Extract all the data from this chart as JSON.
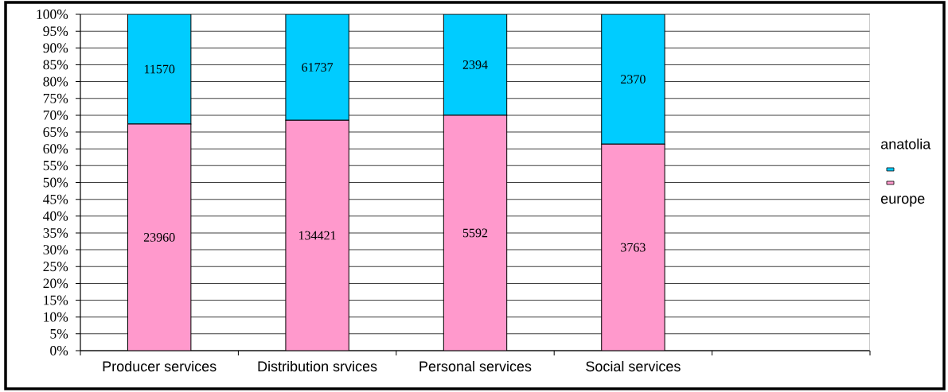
{
  "chart_data": {
    "type": "bar",
    "stacked": true,
    "categories": [
      "Producer services",
      "Distribution srvices",
      "Personal services",
      "Social services",
      null
    ],
    "series": [
      {
        "name": "europe",
        "color": "#ff99cc",
        "values": [
          67.4,
          68.5,
          70.0,
          61.4,
          null
        ]
      },
      {
        "name": "anatolia",
        "color": "#00ccff",
        "values": [
          32.6,
          31.5,
          30.0,
          38.6,
          null
        ]
      }
    ],
    "annotations": [
      "23960",
      "134421",
      "5592",
      "3763",
      "11570",
      "61737",
      "2394",
      "2370"
    ],
    "ylim": [
      0,
      100
    ],
    "yticks": [
      {
        "value": 0,
        "label": "0%"
      },
      {
        "value": 5,
        "label": "5%"
      },
      {
        "value": 10,
        "label": "10%"
      },
      {
        "value": 15,
        "label": "15%"
      },
      {
        "value": 20,
        "label": "20%"
      },
      {
        "value": 25,
        "label": "25%"
      },
      {
        "value": 30,
        "label": "30%"
      },
      {
        "value": 35,
        "label": "35%"
      },
      {
        "value": 40,
        "label": "40%"
      },
      {
        "value": 45,
        "label": "45%"
      },
      {
        "value": 50,
        "label": "50%"
      },
      {
        "value": 55,
        "label": "55%"
      },
      {
        "value": 60,
        "label": "60%"
      },
      {
        "value": 65,
        "label": "65%"
      },
      {
        "value": 70,
        "label": "70%"
      },
      {
        "value": 75,
        "label": "75%"
      },
      {
        "value": 80,
        "label": "80%"
      },
      {
        "value": 85,
        "label": "85%"
      },
      {
        "value": 90,
        "label": "90%"
      },
      {
        "value": 95,
        "label": "95%"
      },
      {
        "value": 100,
        "label": "100%"
      }
    ],
    "grid": "y",
    "legend": "right"
  }
}
